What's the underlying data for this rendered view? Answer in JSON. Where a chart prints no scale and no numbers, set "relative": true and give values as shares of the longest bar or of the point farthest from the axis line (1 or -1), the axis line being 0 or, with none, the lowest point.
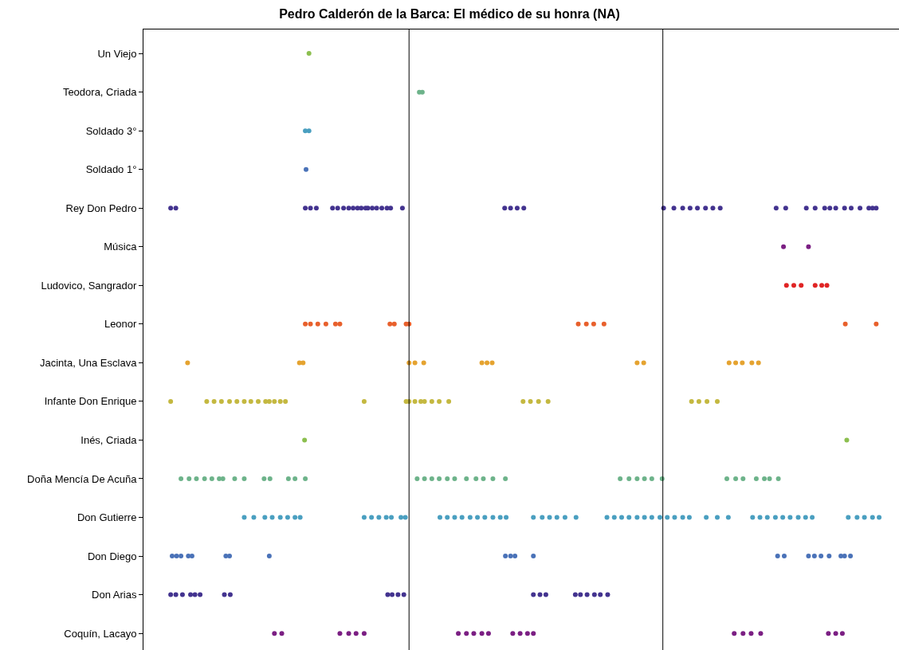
{
  "chart_data": {
    "type": "scatter",
    "title": "Pedro Calderón de la Barca: El médico de su honra (NA)",
    "orientation": "horizontal",
    "relative": true,
    "marker": "circle",
    "categories": [
      "Un Viejo",
      "Teodora, Criada",
      "Soldado 3°",
      "Soldado 1°",
      "Rey Don Pedro",
      "Música",
      "Ludovico, Sangrador",
      "Leonor",
      "Jacinta, Una Esclava",
      "Infante Don Enrique",
      "Inés, Criada",
      "Doña Mencía De Acuña",
      "Don Gutierre",
      "Don Diego",
      "Don Arias",
      "Coquín, Lacayo"
    ],
    "ref_lines": [
      {
        "axis": "x",
        "value": 0.361,
        "color": "#000000"
      },
      {
        "axis": "x",
        "value": 0.706,
        "color": "#000000"
      }
    ],
    "series": [
      {
        "color": "#8cbf4f",
        "x": [
          "Un Viejo"
        ],
        "values": [
          0.225
        ]
      },
      {
        "color": "#6db38a",
        "x": [
          "Teodora, Criada",
          "Teodora, Criada"
        ],
        "values": [
          0.375,
          0.379
        ]
      },
      {
        "color": "#4a9fc0",
        "x": [
          "Soldado 3°",
          "Soldado 3°"
        ],
        "values": [
          0.22,
          0.225
        ]
      },
      {
        "color": "#4a72b8",
        "x": [
          "Soldado 1°"
        ],
        "values": [
          0.221
        ]
      },
      {
        "color": "#43338f",
        "x": [
          "Rey Don Pedro",
          "Rey Don Pedro",
          "Rey Don Pedro",
          "Rey Don Pedro",
          "Rey Don Pedro",
          "Rey Don Pedro",
          "Rey Don Pedro",
          "Rey Don Pedro",
          "Rey Don Pedro",
          "Rey Don Pedro",
          "Rey Don Pedro",
          "Rey Don Pedro",
          "Rey Don Pedro",
          "Rey Don Pedro",
          "Rey Don Pedro",
          "Rey Don Pedro",
          "Rey Don Pedro",
          "Rey Don Pedro",
          "Rey Don Pedro",
          "Rey Don Pedro",
          "Rey Don Pedro",
          "Rey Don Pedro",
          "Rey Don Pedro",
          "Rey Don Pedro",
          "Rey Don Pedro",
          "Rey Don Pedro",
          "Rey Don Pedro",
          "Rey Don Pedro",
          "Rey Don Pedro",
          "Rey Don Pedro",
          "Rey Don Pedro",
          "Rey Don Pedro",
          "Rey Don Pedro",
          "Rey Don Pedro",
          "Rey Don Pedro",
          "Rey Don Pedro",
          "Rey Don Pedro",
          "Rey Don Pedro",
          "Rey Don Pedro",
          "Rey Don Pedro",
          "Rey Don Pedro",
          "Rey Don Pedro",
          "Rey Don Pedro",
          "Rey Don Pedro",
          "Rey Don Pedro",
          "Rey Don Pedro"
        ],
        "values": [
          0.037,
          0.044,
          0.22,
          0.227,
          0.235,
          0.257,
          0.264,
          0.272,
          0.279,
          null,
          0.285,
          0.291,
          0.296,
          0.302,
          0.305,
          0.311,
          0.317,
          0.324,
          0.331,
          0.336,
          0.352,
          0.491,
          0.499,
          0.508,
          0.517,
          0.707,
          0.721,
          0.733,
          0.743,
          0.753,
          0.764,
          0.774,
          0.784,
          0.86,
          0.873,
          0.901,
          0.913,
          0.926,
          0.933,
          0.941,
          0.953,
          0.962,
          0.974,
          0.986,
          0.991,
          0.996
        ]
      },
      {
        "color": "#7b1f83",
        "x": [
          "Música",
          "Música"
        ],
        "values": [
          0.87,
          0.904
        ]
      },
      {
        "color": "#e02424",
        "x": [
          "Ludovico, Sangrador",
          "Ludovico, Sangrador",
          "Ludovico, Sangrador",
          "Ludovico, Sangrador",
          "Ludovico, Sangrador",
          "Ludovico, Sangrador"
        ],
        "values": [
          0.874,
          0.884,
          0.894,
          0.913,
          0.922,
          0.929
        ]
      },
      {
        "color": "#e8602c",
        "x": [
          "Leonor",
          "Leonor",
          "Leonor",
          "Leonor",
          "Leonor",
          "Leonor",
          "Leonor",
          "Leonor",
          "Leonor",
          "Leonor",
          "Leonor",
          "Leonor",
          "Leonor",
          "Leonor",
          "Leonor",
          "Leonor"
        ],
        "values": [
          0.22,
          0.227,
          0.237,
          0.248,
          0.261,
          0.267,
          0.335,
          0.341,
          0.357,
          0.361,
          0.591,
          0.602,
          0.612,
          0.626,
          0.954,
          0.996
        ]
      },
      {
        "color": "#e5a330",
        "x": [
          "Jacinta, Una Esclava",
          "Jacinta, Una Esclava",
          "Jacinta, Una Esclava",
          "Jacinta, Una Esclava",
          "Jacinta, Una Esclava",
          "Jacinta, Una Esclava",
          "Jacinta, Una Esclava",
          "Jacinta, Una Esclava",
          "Jacinta, Una Esclava",
          "Jacinta, Una Esclava",
          "Jacinta, Una Esclava",
          "Jacinta, Una Esclava",
          "Jacinta, Una Esclava",
          "Jacinta, Una Esclava",
          "Jacinta, Una Esclava",
          "Jacinta, Una Esclava",
          "Jacinta, Una Esclava"
        ],
        "values": [
          0.06,
          0.212,
          0.217,
          0.361,
          0.369,
          0.381,
          0.46,
          0.467,
          0.474,
          0.671,
          0.68,
          0.796,
          0.805,
          0.814,
          null,
          0.827,
          0.836
        ]
      },
      {
        "color": "#c4b840",
        "x": [
          "Infante Don Enrique",
          "Infante Don Enrique",
          "Infante Don Enrique",
          "Infante Don Enrique",
          "Infante Don Enrique",
          "Infante Don Enrique",
          "Infante Don Enrique",
          "Infante Don Enrique",
          "Infante Don Enrique",
          "Infante Don Enrique",
          "Infante Don Enrique",
          "Infante Don Enrique",
          "Infante Don Enrique",
          "Infante Don Enrique",
          "Infante Don Enrique",
          "Infante Don Enrique",
          "Infante Don Enrique",
          "Infante Don Enrique",
          "Infante Don Enrique",
          "Infante Don Enrique",
          "Infante Don Enrique",
          "Infante Don Enrique",
          "Infante Don Enrique",
          "Infante Don Enrique",
          "Infante Don Enrique",
          "Infante Don Enrique",
          "Infante Don Enrique",
          "Infante Don Enrique",
          "Infante Don Enrique",
          "Infante Don Enrique",
          "Infante Don Enrique"
        ],
        "values": [
          0.037,
          0.086,
          0.096,
          0.106,
          0.117,
          0.127,
          0.137,
          0.146,
          0.156,
          0.166,
          0.171,
          0.178,
          0.186,
          0.193,
          0.3,
          0.357,
          0.361,
          0.369,
          0.377,
          0.382,
          0.392,
          0.402,
          0.415,
          0.516,
          0.526,
          0.537,
          0.55,
          0.745,
          0.755,
          0.766,
          0.78
        ]
      },
      {
        "color": "#8cbf4f",
        "x": [
          "Inés, Criada",
          "Inés, Criada"
        ],
        "values": [
          0.219,
          0.956
        ]
      },
      {
        "color": "#6db38a",
        "x": [
          "Doña Mencía De Acuña",
          "Doña Mencía De Acuña",
          "Doña Mencía De Acuña",
          "Doña Mencía De Acuña",
          "Doña Mencía De Acuña",
          "Doña Mencía De Acuña",
          "Doña Mencía De Acuña",
          "Doña Mencía De Acuña",
          "Doña Mencía De Acuña",
          "Doña Mencía De Acuña",
          "Doña Mencía De Acuña",
          "Doña Mencía De Acuña",
          "Doña Mencía De Acuña",
          "Doña Mencía De Acuña",
          "Doña Mencía De Acuña",
          "Doña Mencía De Acuña",
          "Doña Mencía De Acuña",
          "Doña Mencía De Acuña",
          "Doña Mencía De Acuña",
          "Doña Mencía De Acuña",
          "Doña Mencía De Acuña",
          "Doña Mencía De Acuña",
          "Doña Mencía De Acuña",
          "Doña Mencía De Acuña",
          "Doña Mencía De Acuña",
          "Doña Mencía De Acuña",
          "Doña Mencía De Acuña",
          "Doña Mencía De Acuña",
          "Doña Mencía De Acuña",
          "Doña Mencía De Acuña",
          "Doña Mencía De Acuña",
          "Doña Mencía De Acuña",
          "Doña Mencía De Acuña",
          "Doña Mencía De Acuña",
          "Doña Mencía De Acuña",
          "Doña Mencía De Acuña",
          "Doña Mencía De Acuña",
          "Doña Mencía De Acuña"
        ],
        "values": [
          0.051,
          0.062,
          0.072,
          0.083,
          0.093,
          0.103,
          0.108,
          0.124,
          0.137,
          0.164,
          0.172,
          0.197,
          0.206,
          0.22,
          0.372,
          0.382,
          0.392,
          0.402,
          0.413,
          0.423,
          0.439,
          0.452,
          0.462,
          0.475,
          0.492,
          0.648,
          0.66,
          0.671,
          0.681,
          0.691,
          0.705,
          0.793,
          0.805,
          0.815,
          0.833,
          0.844,
          0.851,
          0.863
        ]
      },
      {
        "color": "#4a9fc0",
        "x": [
          "Don Gutierre",
          "Don Gutierre",
          "Don Gutierre",
          "Don Gutierre",
          "Don Gutierre",
          "Don Gutierre",
          "Don Gutierre",
          "Don Gutierre",
          "Don Gutierre",
          "Don Gutierre",
          "Don Gutierre",
          "Don Gutierre",
          "Don Gutierre",
          "Don Gutierre",
          "Don Gutierre",
          "Don Gutierre",
          "Don Gutierre",
          "Don Gutierre",
          "Don Gutierre",
          "Don Gutierre",
          "Don Gutierre",
          "Don Gutierre",
          "Don Gutierre",
          "Don Gutierre",
          "Don Gutierre",
          "Don Gutierre",
          "Don Gutierre",
          "Don Gutierre",
          "Don Gutierre",
          "Don Gutierre",
          "Don Gutierre",
          "Don Gutierre",
          "Don Gutierre",
          "Don Gutierre",
          "Don Gutierre",
          "Don Gutierre",
          "Don Gutierre",
          "Don Gutierre",
          "Don Gutierre",
          "Don Gutierre",
          "Don Gutierre",
          "Don Gutierre",
          "Don Gutierre",
          "Don Gutierre",
          "Don Gutierre",
          "Don Gutierre",
          "Don Gutierre",
          "Don Gutierre",
          "Don Gutierre",
          "Don Gutierre",
          "Don Gutierre",
          "Don Gutierre",
          "Don Gutierre",
          "Don Gutierre",
          "Don Gutierre",
          "Don Gutierre",
          "Don Gutierre",
          "Don Gutierre",
          "Don Gutierre",
          "Don Gutierre"
        ],
        "values": [
          0.137,
          0.15,
          0.165,
          0.175,
          0.186,
          0.196,
          0.206,
          0.213,
          0.3,
          0.31,
          0.32,
          0.33,
          0.337,
          0.35,
          0.356,
          0.403,
          0.413,
          0.423,
          0.433,
          0.444,
          0.454,
          0.464,
          0.475,
          0.485,
          0.493,
          0.53,
          0.542,
          0.552,
          0.562,
          0.573,
          0.588,
          0.63,
          0.64,
          0.65,
          0.66,
          0.671,
          0.681,
          0.691,
          0.702,
          0.712,
          0.722,
          0.733,
          0.742,
          0.765,
          0.78,
          0.795,
          0.828,
          0.838,
          0.848,
          0.859,
          0.869,
          0.879,
          0.89,
          0.9,
          0.909,
          0.958,
          0.97,
          0.98,
          0.991,
          1.0
        ]
      },
      {
        "color": "#4a72b8",
        "x": [
          "Don Diego",
          "Don Diego",
          "Don Diego",
          "Don Diego",
          "Don Diego",
          "Don Diego",
          "Don Diego",
          "Don Diego",
          "Don Diego",
          "Don Diego",
          "Don Diego",
          "Don Diego",
          "Don Diego",
          "Don Diego",
          "Don Diego",
          "Don Diego",
          "Don Diego",
          "Don Diego",
          "Don Diego",
          "Don Diego",
          "Don Diego"
        ],
        "values": [
          0.039,
          0.045,
          0.051,
          0.061,
          0.066,
          0.112,
          0.117,
          0.171,
          0.492,
          0.499,
          0.505,
          0.53,
          0.862,
          0.871,
          0.904,
          0.912,
          0.921,
          0.932,
          0.948,
          0.953,
          0.961
        ]
      },
      {
        "color": "#43338f",
        "x": [
          "Don Arias",
          "Don Arias",
          "Don Arias",
          "Don Arias",
          "Don Arias",
          "Don Arias",
          "Don Arias",
          "Don Arias",
          "Don Arias",
          "Don Arias",
          "Don Arias",
          "Don Arias",
          "Don Arias",
          "Don Arias",
          "Don Arias",
          "Don Arias",
          "Don Arias",
          "Don Arias",
          "Don Arias",
          "Don Arias",
          "Don Arias"
        ],
        "values": [
          0.037,
          0.044,
          0.053,
          0.064,
          0.07,
          0.077,
          0.11,
          0.118,
          0.332,
          0.338,
          0.346,
          0.354,
          0.53,
          0.539,
          0.547,
          0.587,
          0.594,
          0.603,
          0.613,
          0.621,
          0.631
        ]
      },
      {
        "color": "#7b1f83",
        "x": [
          "Coquín, Lacayo",
          "Coquín, Lacayo",
          "Coquín, Lacayo",
          "Coquín, Lacayo",
          "Coquín, Lacayo",
          "Coquín, Lacayo",
          "Coquín, Lacayo",
          "Coquín, Lacayo",
          "Coquín, Lacayo",
          "Coquín, Lacayo",
          "Coquín, Lacayo",
          "Coquín, Lacayo",
          "Coquín, Lacayo",
          "Coquín, Lacayo",
          "Coquín, Lacayo",
          "Coquín, Lacayo",
          "Coquín, Lacayo",
          "Coquín, Lacayo",
          "Coquín, Lacayo",
          "Coquín, Lacayo",
          "Coquín, Lacayo",
          "Coquín, Lacayo"
        ],
        "values": [
          0.178,
          0.188,
          0.267,
          0.279,
          0.289,
          0.3,
          0.428,
          0.439,
          0.449,
          0.46,
          0.469,
          0.502,
          0.512,
          0.522,
          0.53,
          0.803,
          0.815,
          0.826,
          0.839,
          0.931,
          0.941,
          0.95
        ]
      }
    ]
  }
}
